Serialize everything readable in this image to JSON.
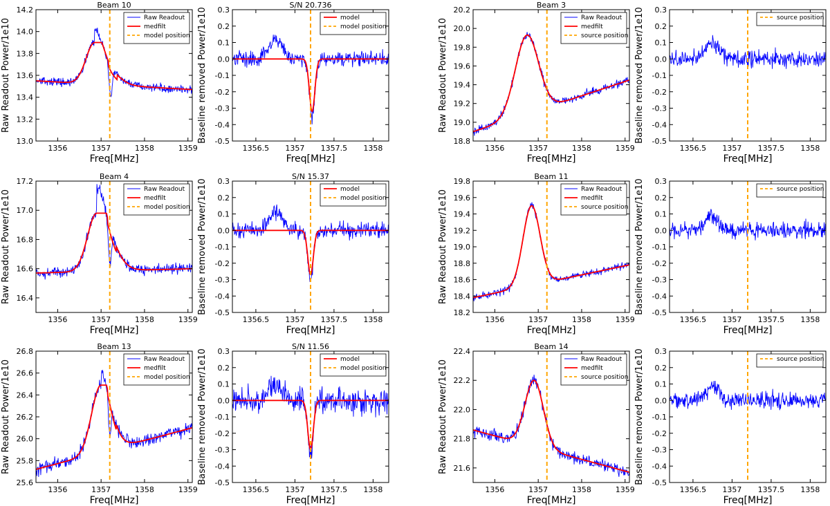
{
  "chart_data": [
    {
      "id": "b10_raw",
      "type": "line",
      "title": "Beam 10",
      "xlabel": "Freq[MHz]",
      "ylabel": "Raw Readout Power/1e10",
      "xlim": [
        1355.5,
        1359.1
      ],
      "ylim": [
        13.0,
        14.2
      ],
      "xticks": [
        1356,
        1357,
        1358,
        1359
      ],
      "yticks": [
        13.0,
        13.2,
        13.4,
        13.6,
        13.8,
        14.0,
        14.2
      ],
      "legend": [
        "Raw Readout",
        "medfilt",
        "model position"
      ],
      "line_pos": 1357.2,
      "profile": {
        "base_left": 13.55,
        "base_right": 13.47,
        "peak": 13.9,
        "peak_center": 1356.85,
        "peak_width": 0.28,
        "dip": -0.3,
        "dip_center": 1357.22,
        "dip_width": 0.05,
        "step": 0.12,
        "noise": 0.035
      }
    },
    {
      "id": "b10_res",
      "type": "line",
      "title": "S/N 20.736",
      "xlabel": "Freq[MHz]",
      "ylabel": "Baseline removed Power/1e10",
      "xlim": [
        1356.2,
        1358.2
      ],
      "ylim": [
        -0.5,
        0.3
      ],
      "xticks": [
        1356.5,
        1357,
        1357.5,
        1358
      ],
      "yticks": [
        -0.5,
        -0.4,
        -0.3,
        -0.2,
        -0.1,
        0.0,
        0.1,
        0.2,
        0.3
      ],
      "legend": [
        "model",
        "model position"
      ],
      "line_pos": 1357.2,
      "profile": {
        "model_depth": -0.32,
        "model_center": 1357.22,
        "model_width": 0.05,
        "noise": 0.045,
        "bump": 0.12
      }
    },
    {
      "id": "b3_raw",
      "type": "line",
      "title": "Beam 3",
      "xlabel": "Freq[MHz]",
      "ylabel": "Raw Readout Power/1e10",
      "xlim": [
        1355.5,
        1359.1
      ],
      "ylim": [
        18.8,
        20.2
      ],
      "xticks": [
        1356,
        1357,
        1358,
        1359
      ],
      "yticks": [
        18.8,
        19.0,
        19.2,
        19.4,
        19.6,
        19.8,
        20.0,
        20.2
      ],
      "legend": [
        "Raw Readout",
        "medfilt",
        "source position"
      ],
      "line_pos": 1357.2,
      "profile": {
        "base_left": 18.9,
        "base_right": 19.45,
        "peak": 19.93,
        "peak_center": 1356.75,
        "peak_width": 0.38,
        "dip": 0.0,
        "dip_center": 1357.2,
        "dip_width": 0.05,
        "step": 0.0,
        "noise": 0.04
      }
    },
    {
      "id": "b3_res",
      "type": "line",
      "title": "",
      "xlabel": "Freq[MHz]",
      "ylabel": "Baseline removed Power/1e10",
      "xlim": [
        1356.2,
        1358.2
      ],
      "ylim": [
        -0.5,
        0.3
      ],
      "xticks": [
        1356.5,
        1357,
        1357.5,
        1358
      ],
      "yticks": [
        -0.5,
        -0.4,
        -0.3,
        -0.2,
        -0.1,
        0.0,
        0.1,
        0.2,
        0.3
      ],
      "legend": [
        "source position"
      ],
      "line_pos": 1357.2,
      "profile": {
        "noise": 0.05,
        "bump": 0.1
      }
    },
    {
      "id": "b4_raw",
      "type": "line",
      "title": "Beam 4",
      "xlabel": "Freq[MHz]",
      "ylabel": "Raw Readout Power/1e10",
      "xlim": [
        1355.5,
        1359.1
      ],
      "ylim": [
        16.3,
        17.2
      ],
      "xticks": [
        1356,
        1357,
        1358,
        1359
      ],
      "yticks": [
        16.4,
        16.6,
        16.8,
        17.0,
        17.2
      ],
      "legend": [
        "Raw Readout",
        "medfilt",
        "model position"
      ],
      "line_pos": 1357.2,
      "profile": {
        "base_left": 16.57,
        "base_right": 16.6,
        "peak": 16.98,
        "peak_center": 1356.9,
        "peak_width": 0.3,
        "dip": -0.25,
        "dip_center": 1357.2,
        "dip_width": 0.05,
        "step": 0.18,
        "noise": 0.035
      }
    },
    {
      "id": "b4_res",
      "type": "line",
      "title": "S/N 15.37",
      "xlabel": "Freq[MHz]",
      "ylabel": "Baseline removed Power/1e10",
      "xlim": [
        1356.2,
        1358.2
      ],
      "ylim": [
        -0.5,
        0.3
      ],
      "xticks": [
        1356.5,
        1357,
        1357.5,
        1358
      ],
      "yticks": [
        -0.5,
        -0.4,
        -0.3,
        -0.2,
        -0.1,
        0.0,
        0.1,
        0.2,
        0.3
      ],
      "legend": [
        "model",
        "model position"
      ],
      "line_pos": 1357.2,
      "profile": {
        "model_depth": -0.27,
        "model_center": 1357.2,
        "model_width": 0.05,
        "noise": 0.045,
        "bump": 0.12
      }
    },
    {
      "id": "b11_raw",
      "type": "line",
      "title": "Beam 11",
      "xlabel": "Freq[MHz]",
      "ylabel": "Raw Readout Power/1e10",
      "xlim": [
        1355.5,
        1359.1
      ],
      "ylim": [
        18.2,
        19.8
      ],
      "xticks": [
        1356,
        1357,
        1358,
        1359
      ],
      "yticks": [
        18.2,
        18.4,
        18.6,
        18.8,
        19.0,
        19.2,
        19.4,
        19.6,
        19.8
      ],
      "legend": [
        "Raw Readout",
        "medfilt",
        "source position"
      ],
      "line_pos": 1357.2,
      "profile": {
        "base_left": 18.38,
        "base_right": 18.78,
        "peak": 19.5,
        "peak_center": 1356.85,
        "peak_width": 0.28,
        "dip": 0.0,
        "dip_center": 1357.2,
        "dip_width": 0.05,
        "step": 0.0,
        "noise": 0.04
      }
    },
    {
      "id": "b11_res",
      "type": "line",
      "title": "",
      "xlabel": "Freq[MHz]",
      "ylabel": "Baseline removed Power/1e10",
      "xlim": [
        1356.2,
        1358.2
      ],
      "ylim": [
        -0.5,
        0.3
      ],
      "xticks": [
        1356.5,
        1357,
        1357.5,
        1358
      ],
      "yticks": [
        -0.5,
        -0.4,
        -0.3,
        -0.2,
        -0.1,
        0.0,
        0.1,
        0.2,
        0.3
      ],
      "legend": [
        "source position"
      ],
      "line_pos": 1357.2,
      "profile": {
        "noise": 0.05,
        "bump": 0.08
      }
    },
    {
      "id": "b13_raw",
      "type": "line",
      "title": "Beam 13",
      "xlabel": "Freq[MHz]",
      "ylabel": "Raw Readout Power/1e10",
      "xlim": [
        1355.5,
        1359.1
      ],
      "ylim": [
        25.6,
        26.8
      ],
      "xticks": [
        1356,
        1357,
        1358,
        1359
      ],
      "yticks": [
        25.6,
        25.8,
        26.0,
        26.2,
        26.4,
        26.6,
        26.8
      ],
      "legend": [
        "Raw Readout",
        "medfilt",
        "model position"
      ],
      "line_pos": 1357.2,
      "profile": {
        "base_left": 25.72,
        "base_right": 26.1,
        "peak": 26.49,
        "peak_center": 1357.0,
        "peak_width": 0.3,
        "dip": -0.35,
        "dip_center": 1357.2,
        "dip_width": 0.04,
        "step": 0.1,
        "noise": 0.055
      }
    },
    {
      "id": "b13_res",
      "type": "line",
      "title": "S/N 11.56",
      "xlabel": "Freq[MHz]",
      "ylabel": "Baseline removed Power/1e10",
      "xlim": [
        1356.2,
        1358.2
      ],
      "ylim": [
        -0.5,
        0.3
      ],
      "xticks": [
        1356.5,
        1357,
        1357.5,
        1358
      ],
      "yticks": [
        -0.5,
        -0.4,
        -0.3,
        -0.2,
        -0.1,
        0.0,
        0.1,
        0.2,
        0.3
      ],
      "legend": [
        "model",
        "model position"
      ],
      "line_pos": 1357.2,
      "profile": {
        "model_depth": -0.3,
        "model_center": 1357.2,
        "model_width": 0.05,
        "noise": 0.07,
        "bump": 0.1
      }
    },
    {
      "id": "b14_raw",
      "type": "line",
      "title": "Beam 14",
      "xlabel": "Freq[MHz]",
      "ylabel": "Raw Readout Power/1e10",
      "xlim": [
        1355.5,
        1359.1
      ],
      "ylim": [
        21.5,
        22.4
      ],
      "xticks": [
        1356,
        1357,
        1358,
        1359
      ],
      "yticks": [
        21.6,
        21.8,
        22.0,
        22.2,
        22.4
      ],
      "legend": [
        "Raw Readout",
        "medfilt",
        "source position"
      ],
      "line_pos": 1357.2,
      "profile": {
        "base_left": 21.86,
        "base_right": 21.57,
        "peak": 22.2,
        "peak_center": 1356.9,
        "peak_width": 0.3,
        "dip": 0.0,
        "dip_center": 1357.2,
        "dip_width": 0.05,
        "step": 0.0,
        "noise": 0.04
      }
    },
    {
      "id": "b14_res",
      "type": "line",
      "title": "",
      "xlabel": "Freq[MHz]",
      "ylabel": "Baseline removed Power/1e10",
      "xlim": [
        1356.2,
        1358.2
      ],
      "ylim": [
        -0.5,
        0.3
      ],
      "xticks": [
        1356.5,
        1357,
        1357.5,
        1358
      ],
      "yticks": [
        -0.5,
        -0.4,
        -0.3,
        -0.2,
        -0.1,
        0.0,
        0.1,
        0.2,
        0.3
      ],
      "legend": [
        "source position"
      ],
      "line_pos": 1357.2,
      "profile": {
        "noise": 0.05,
        "bump": 0.08
      }
    }
  ],
  "colors": {
    "raw": "#0000ff",
    "medfilt": "#ff0000",
    "marker": "#ffa500"
  }
}
